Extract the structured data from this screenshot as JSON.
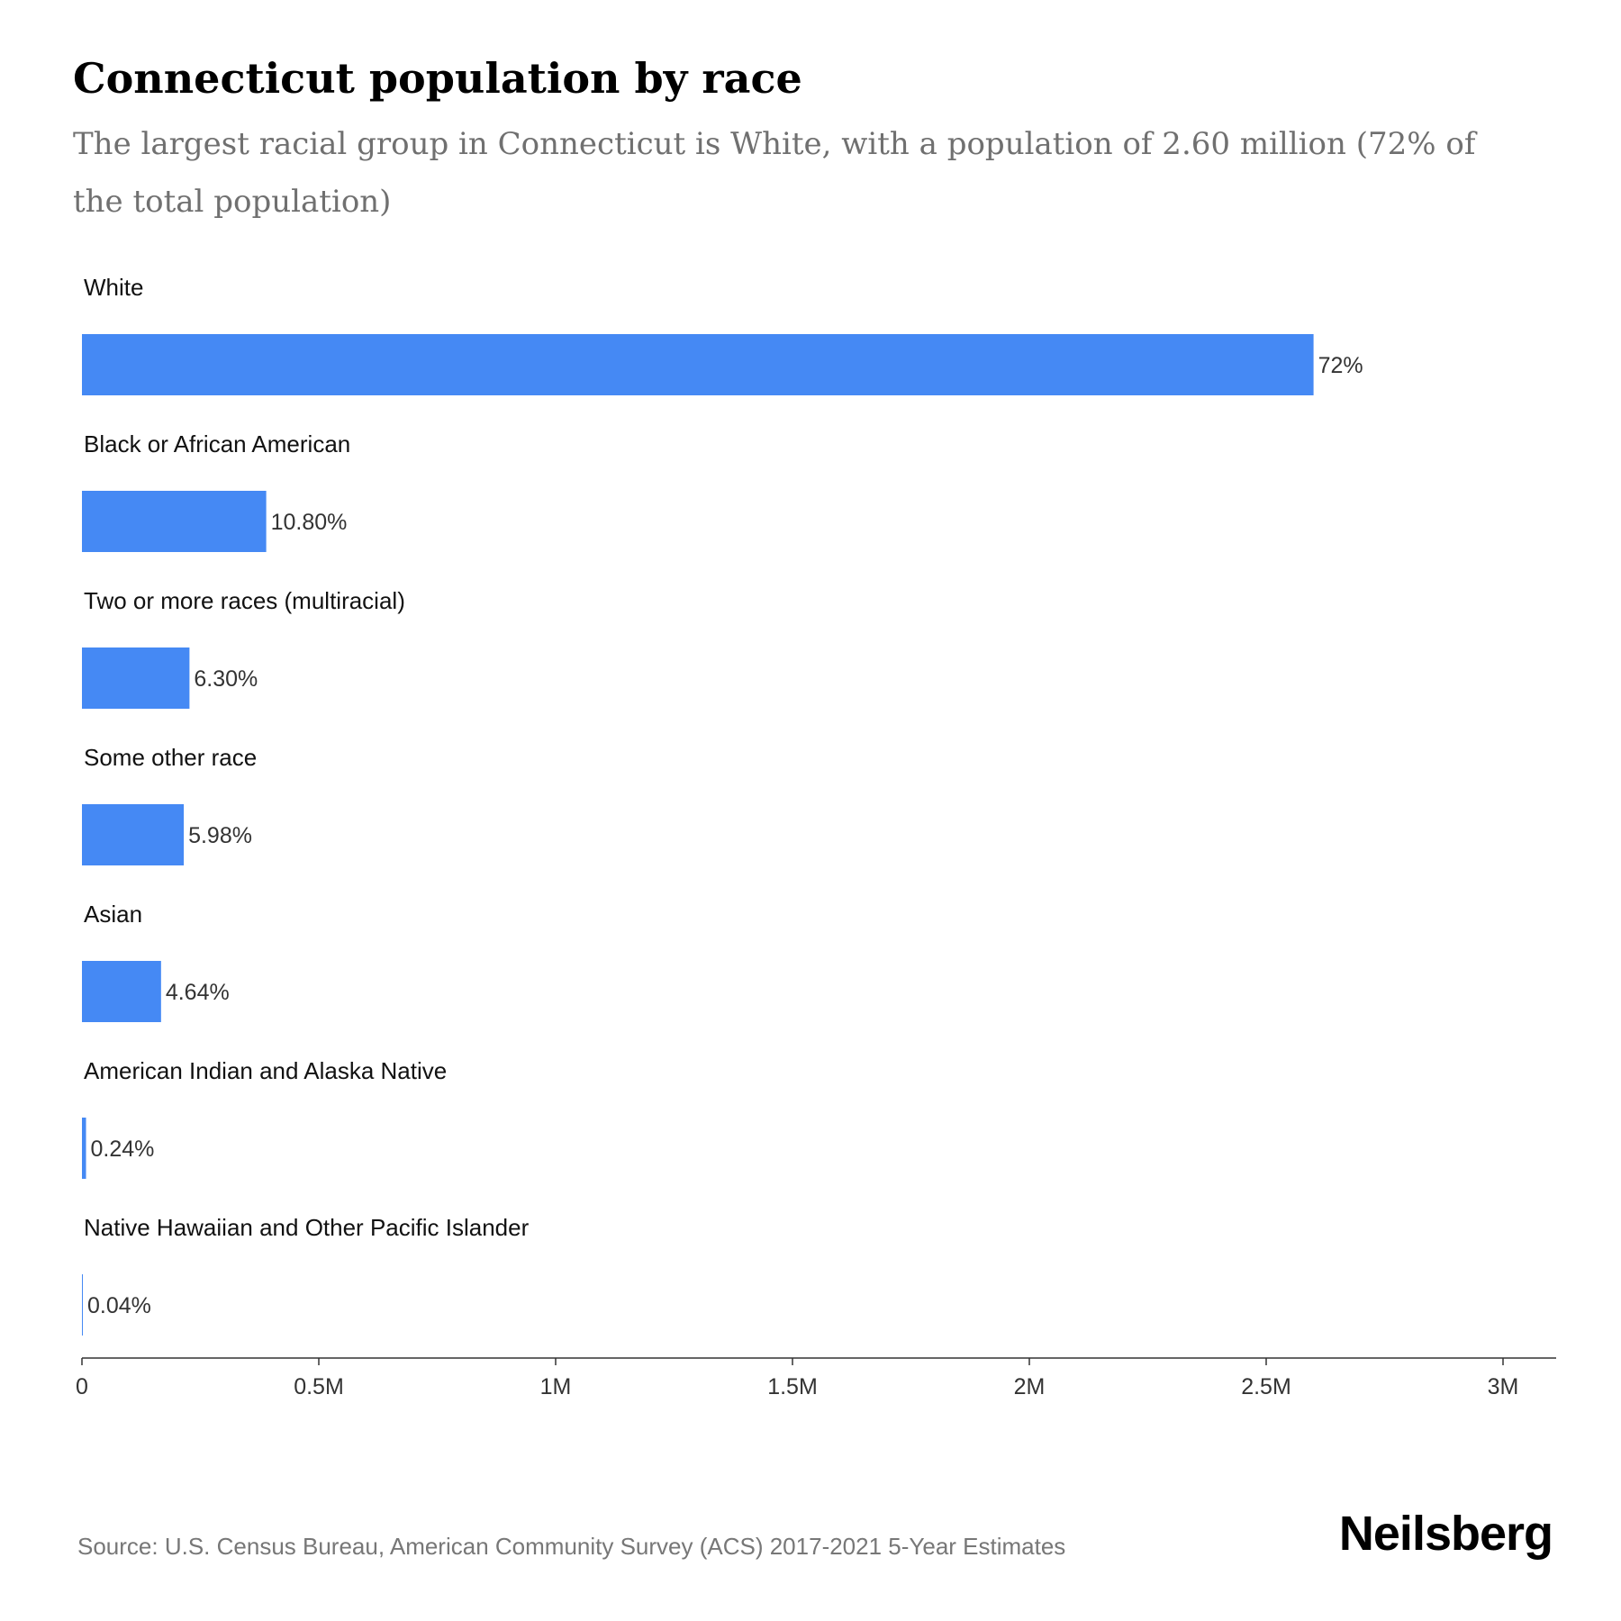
{
  "chart_data": {
    "type": "bar",
    "orientation": "horizontal",
    "title": "Connecticut population by race",
    "subtitle": "The largest racial group in Connecticut is White, with a population of 2.60 million (72% of the total population)",
    "categories": [
      "White",
      "Black or African American",
      "Two or more races (multiracial)",
      "Some other race",
      "Asian",
      "American Indian and Alaska Native",
      "Native Hawaiian and Other Pacific Islander"
    ],
    "values": [
      2600000,
      389000,
      227000,
      215000,
      167000,
      8600,
      1400
    ],
    "value_labels": [
      "72%",
      "10.80%",
      "6.30%",
      "5.98%",
      "4.64%",
      "0.24%",
      "0.04%"
    ],
    "xlim": [
      0,
      3000000
    ],
    "ticks": [
      0,
      500000,
      1000000,
      1500000,
      2000000,
      2500000,
      3000000
    ],
    "tick_labels": [
      "0",
      "0.5M",
      "1M",
      "1.5M",
      "2M",
      "2.5M",
      "3M"
    ],
    "grid": false,
    "bar_color": "#4589f4",
    "source": "Source: U.S. Census Bureau, American Community Survey (ACS) 2017-2021 5-Year Estimates",
    "brand": "Neilsberg"
  }
}
